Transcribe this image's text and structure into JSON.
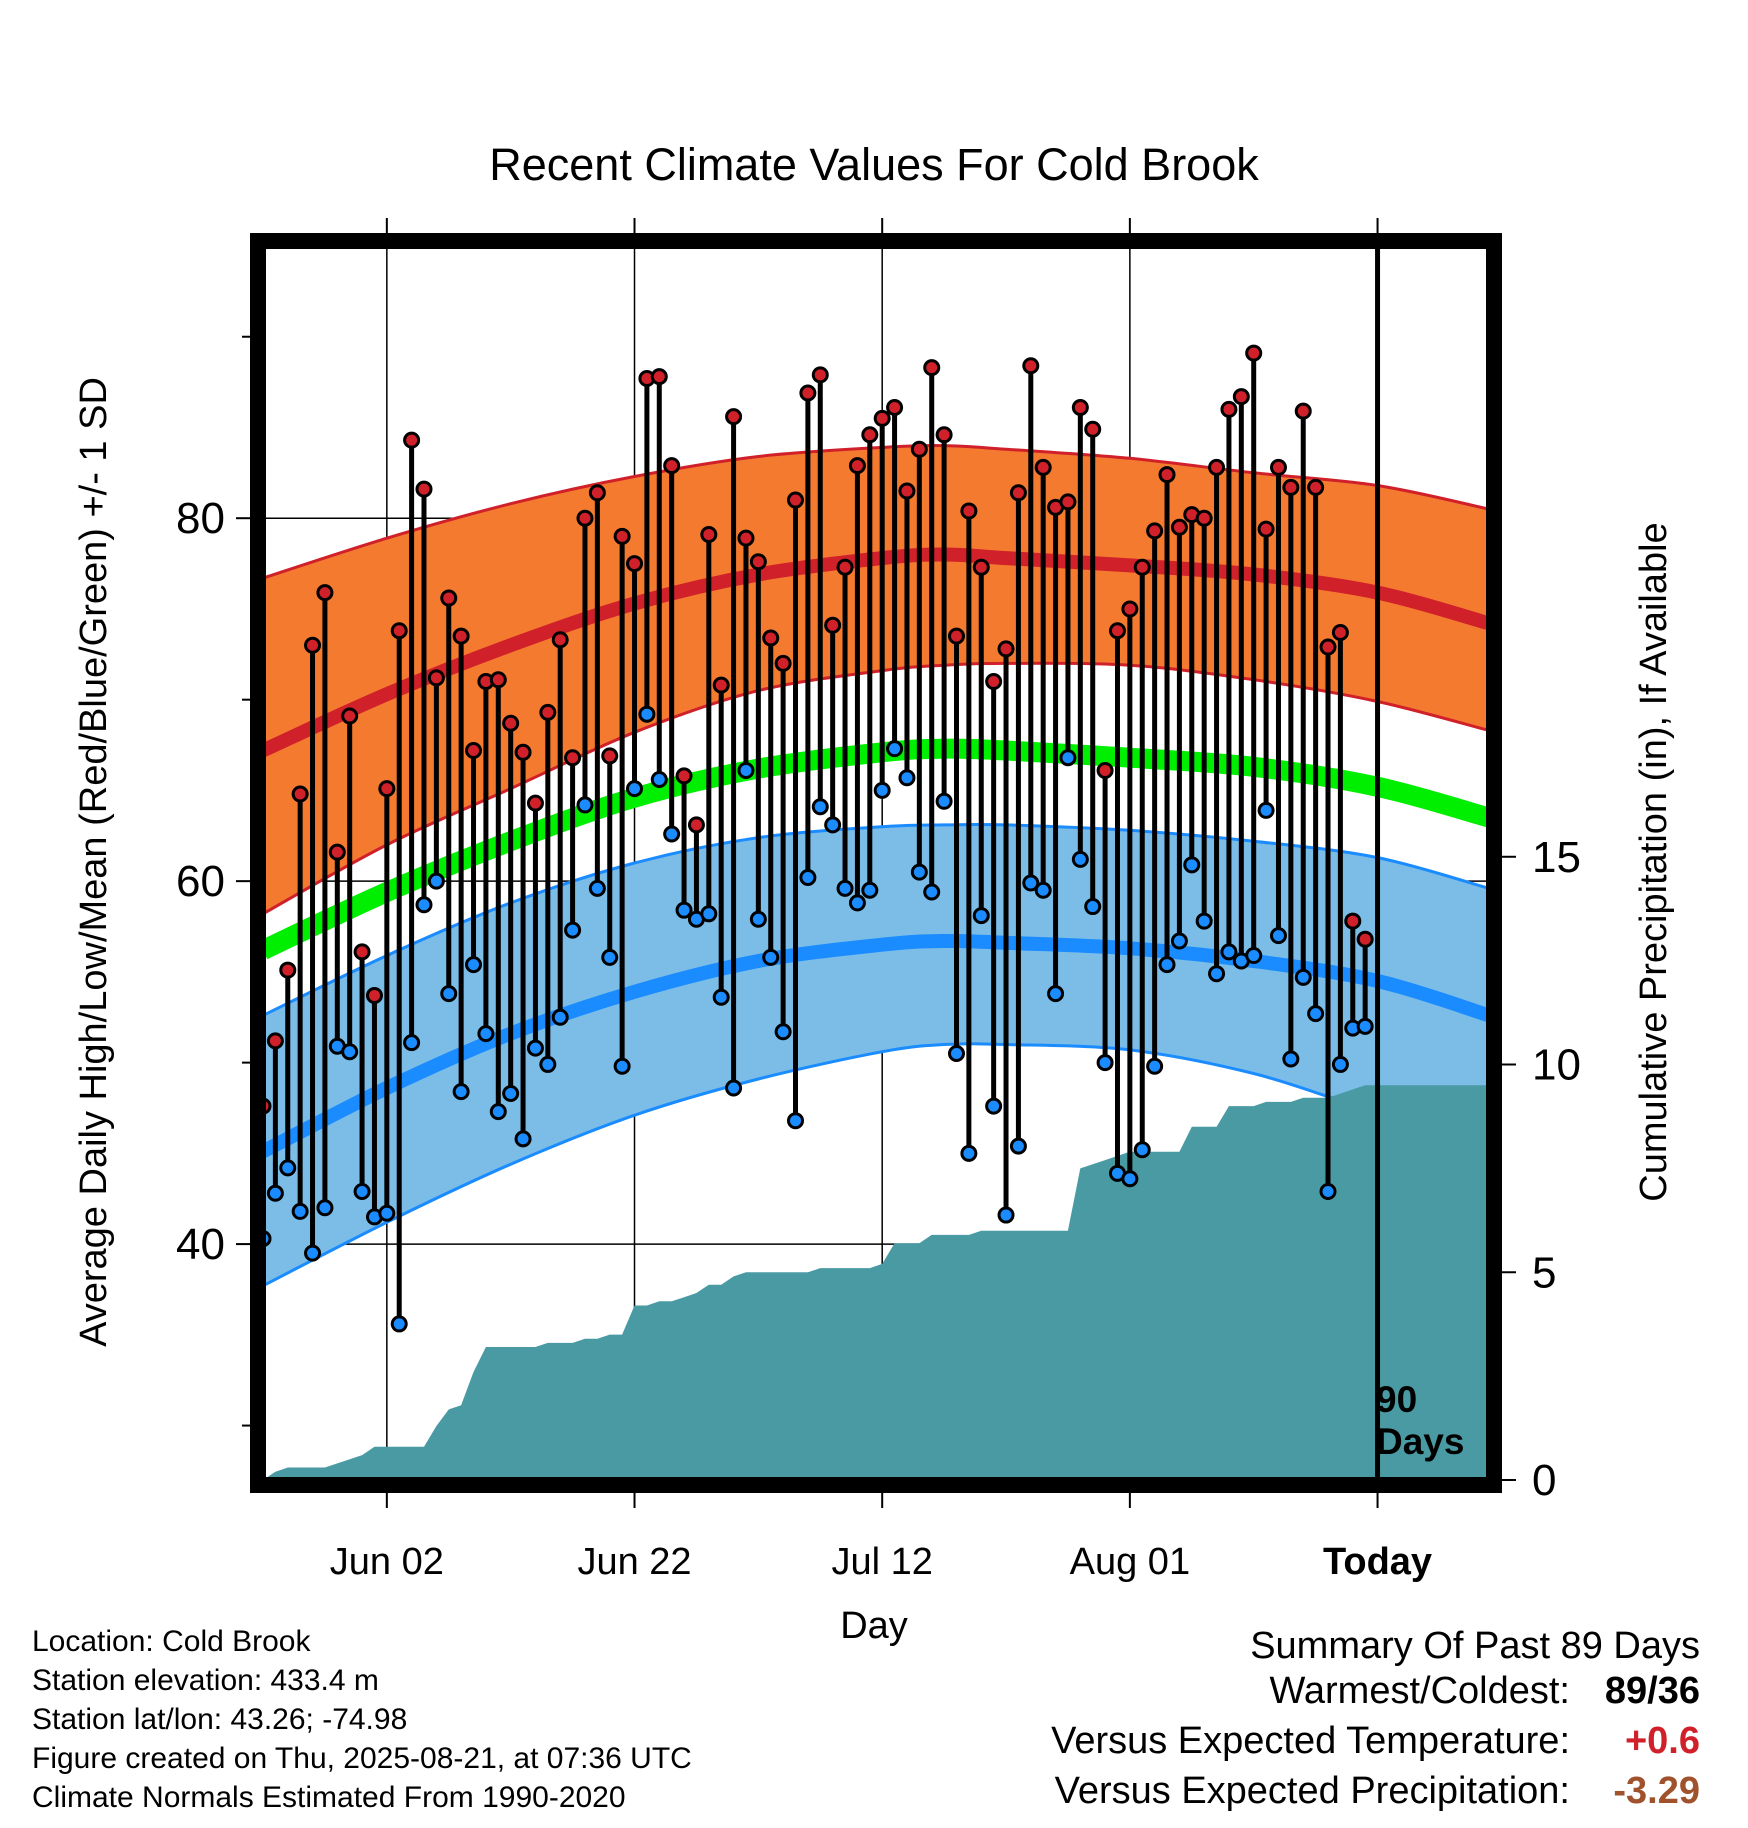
{
  "chart_data": {
    "type": "line",
    "title": "Recent Climate Values For Cold Brook",
    "xlabel": "Day",
    "ylabel": "Average Daily High/Low/Mean (Red/Blue/Green) +/- 1 SD",
    "y2label": "Cumulative Precipitation (in), If Available",
    "ylim": [
      27,
      95
    ],
    "y_ticks": [
      "40",
      "60",
      "80"
    ],
    "y2lim": [
      0,
      29.7
    ],
    "y2_ticks": [
      "0",
      "5",
      "10",
      "15"
    ],
    "x_ticks": [
      {
        "label": "Jun 02",
        "day": 10
      },
      {
        "label": "Jun 22",
        "day": 30
      },
      {
        "label": "Jul 12",
        "day": 50
      },
      {
        "label": "Aug 01",
        "day": 70
      },
      {
        "label": "Today",
        "day": 90
      }
    ],
    "x_range_days": [
      0,
      99
    ],
    "today_line_day": 90,
    "today_label": [
      "90",
      "Days"
    ],
    "grid": true,
    "colors": {
      "high_band": "#f47a30",
      "high_mean": "#d0202a",
      "low_band": "#7cbde8",
      "low_mean": "#1a8cff",
      "mean": "#00ee00",
      "precip": "#4a9aa4",
      "high_dot": "#d0202a",
      "low_dot": "#1a8cff"
    },
    "normals": {
      "days": [
        0,
        10,
        20,
        30,
        40,
        50,
        55,
        60,
        70,
        80,
        90,
        99
      ],
      "high_mean": [
        67.2,
        70.3,
        73.0,
        75.3,
        76.9,
        77.8,
        78.0,
        77.8,
        77.4,
        76.9,
        75.9,
        74.2
      ],
      "high_upper": [
        76.7,
        78.9,
        80.8,
        82.3,
        83.4,
        83.9,
        84.0,
        83.8,
        83.3,
        82.5,
        81.8,
        80.5
      ],
      "high_lower": [
        58.2,
        62.0,
        65.1,
        68.2,
        70.5,
        71.6,
        71.9,
        72.0,
        71.9,
        71.1,
        69.9,
        68.3
      ],
      "mean": [
        56.2,
        59.4,
        62.2,
        64.6,
        66.2,
        67.1,
        67.3,
        67.2,
        66.8,
        66.3,
        65.2,
        63.5
      ],
      "low_mean": [
        45.1,
        48.6,
        51.6,
        53.9,
        55.6,
        56.5,
        56.7,
        56.6,
        56.3,
        55.6,
        54.5,
        52.6
      ],
      "low_upper": [
        52.6,
        55.9,
        58.8,
        61.0,
        62.4,
        63.0,
        63.1,
        63.1,
        62.8,
        62.2,
        61.3,
        59.6
      ],
      "low_lower": [
        37.7,
        41.2,
        44.4,
        47.1,
        49.1,
        50.6,
        51.0,
        51.0,
        50.7,
        49.4,
        47.3,
        46.2
      ]
    },
    "daily": {
      "days": [
        0,
        1,
        2,
        3,
        4,
        5,
        6,
        7,
        8,
        9,
        10,
        11,
        12,
        13,
        14,
        15,
        16,
        17,
        18,
        19,
        20,
        21,
        22,
        23,
        24,
        25,
        26,
        27,
        28,
        29,
        30,
        31,
        32,
        33,
        34,
        35,
        36,
        37,
        38,
        39,
        40,
        41,
        42,
        43,
        44,
        45,
        46,
        47,
        48,
        49,
        50,
        51,
        52,
        53,
        54,
        55,
        56,
        57,
        58,
        59,
        60,
        61,
        62,
        63,
        64,
        65,
        66,
        67,
        68,
        69,
        70,
        71,
        72,
        73,
        74,
        75,
        76,
        77,
        78,
        79,
        80,
        81,
        82,
        83,
        84,
        85,
        86,
        87,
        88,
        89
      ],
      "high": [
        47.6,
        51.2,
        55.1,
        64.8,
        73.0,
        75.9,
        61.6,
        69.1,
        56.1,
        53.7,
        65.1,
        73.8,
        84.3,
        81.6,
        71.2,
        75.6,
        73.5,
        67.2,
        71.0,
        71.1,
        68.7,
        67.1,
        64.3,
        69.3,
        73.3,
        66.8,
        80.0,
        81.4,
        66.9,
        79.0,
        77.5,
        87.7,
        87.8,
        82.9,
        65.8,
        63.1,
        79.1,
        70.8,
        85.6,
        78.9,
        77.6,
        73.4,
        72.0,
        81.0,
        86.9,
        87.9,
        74.1,
        77.3,
        82.9,
        84.6,
        85.5,
        86.1,
        81.5,
        83.8,
        88.3,
        84.6,
        73.5,
        80.4,
        77.3,
        71.0,
        72.8,
        81.4,
        88.4,
        82.8,
        80.6,
        80.9,
        86.1,
        84.9,
        66.1,
        73.8,
        75.0,
        77.3,
        79.3,
        82.4,
        79.5,
        80.2,
        80.0,
        82.8,
        86.0,
        86.7,
        89.1,
        79.4,
        82.8,
        81.7,
        85.9,
        81.7,
        72.9,
        73.7,
        57.8,
        56.8
      ],
      "low": [
        40.3,
        42.8,
        44.2,
        41.8,
        39.5,
        42.0,
        50.9,
        50.6,
        42.9,
        41.5,
        41.7,
        35.6,
        51.1,
        58.7,
        60.0,
        53.8,
        48.4,
        55.4,
        51.6,
        47.3,
        48.3,
        45.8,
        50.8,
        49.9,
        52.5,
        57.3,
        64.2,
        59.6,
        55.8,
        49.8,
        65.1,
        69.2,
        65.6,
        62.6,
        58.4,
        57.9,
        58.2,
        53.6,
        48.6,
        66.1,
        57.9,
        55.8,
        51.7,
        46.8,
        60.2,
        64.1,
        63.1,
        59.6,
        58.8,
        59.5,
        65.0,
        67.3,
        65.7,
        60.5,
        59.4,
        64.4,
        50.5,
        45.0,
        58.1,
        47.6,
        41.6,
        45.4,
        59.9,
        59.5,
        53.8,
        66.8,
        61.2,
        58.6,
        50.0,
        43.9,
        43.6,
        45.2,
        49.8,
        55.4,
        56.7,
        60.9,
        57.8,
        54.9,
        56.1,
        55.6,
        55.9,
        63.9,
        57.0,
        50.2,
        54.7,
        52.7,
        42.9,
        49.9,
        51.9,
        52.0
      ]
    },
    "precip_cumulative": {
      "days": [
        0,
        1,
        2,
        3,
        4,
        5,
        6,
        7,
        8,
        9,
        10,
        11,
        12,
        13,
        14,
        15,
        16,
        17,
        18,
        19,
        20,
        21,
        22,
        23,
        24,
        25,
        26,
        27,
        28,
        29,
        30,
        31,
        32,
        33,
        34,
        35,
        36,
        37,
        38,
        39,
        40,
        41,
        42,
        43,
        44,
        45,
        46,
        47,
        48,
        49,
        50,
        51,
        52,
        53,
        54,
        55,
        56,
        57,
        58,
        59,
        60,
        61,
        62,
        63,
        64,
        65,
        66,
        67,
        68,
        69,
        70,
        71,
        72,
        73,
        74,
        75,
        76,
        77,
        78,
        79,
        80,
        81,
        82,
        83,
        84,
        85,
        86,
        87,
        88,
        89,
        90,
        99
      ],
      "values": [
        0.0,
        0.2,
        0.3,
        0.3,
        0.3,
        0.3,
        0.4,
        0.5,
        0.6,
        0.8,
        0.8,
        0.8,
        0.8,
        0.8,
        1.3,
        1.7,
        1.8,
        2.6,
        3.2,
        3.2,
        3.2,
        3.2,
        3.2,
        3.3,
        3.3,
        3.3,
        3.4,
        3.4,
        3.5,
        3.5,
        4.2,
        4.2,
        4.3,
        4.3,
        4.4,
        4.5,
        4.7,
        4.7,
        4.9,
        5.0,
        5.0,
        5.0,
        5.0,
        5.0,
        5.0,
        5.1,
        5.1,
        5.1,
        5.1,
        5.1,
        5.2,
        5.7,
        5.7,
        5.7,
        5.9,
        5.9,
        5.9,
        5.9,
        6.0,
        6.0,
        6.0,
        6.0,
        6.0,
        6.0,
        6.0,
        6.0,
        7.5,
        7.6,
        7.7,
        7.8,
        7.9,
        7.9,
        7.9,
        7.9,
        7.9,
        8.5,
        8.5,
        8.5,
        9.0,
        9.0,
        9.0,
        9.1,
        9.1,
        9.1,
        9.2,
        9.2,
        9.2,
        9.3,
        9.4,
        9.5,
        9.5,
        9.5
      ]
    }
  },
  "figure_info": {
    "lines": [
      "Location: Cold Brook",
      "Station elevation: 433.4 m",
      "Station lat/lon: 43.26; -74.98",
      "Figure created on Thu, 2025-08-21, at 07:36 UTC",
      "Climate Normals Estimated From 1990-2020"
    ]
  },
  "summary": {
    "title": "Summary Of Past 89 Days",
    "rows": [
      {
        "label": "Warmest/Coldest:",
        "value": "89/36",
        "color": "#000000"
      },
      {
        "label": "Versus Expected Temperature:",
        "value": "+0.6",
        "color": "#d0202a"
      },
      {
        "label": "Versus Expected Precipitation:",
        "value": "-3.29",
        "color": "#a0522d"
      }
    ]
  }
}
